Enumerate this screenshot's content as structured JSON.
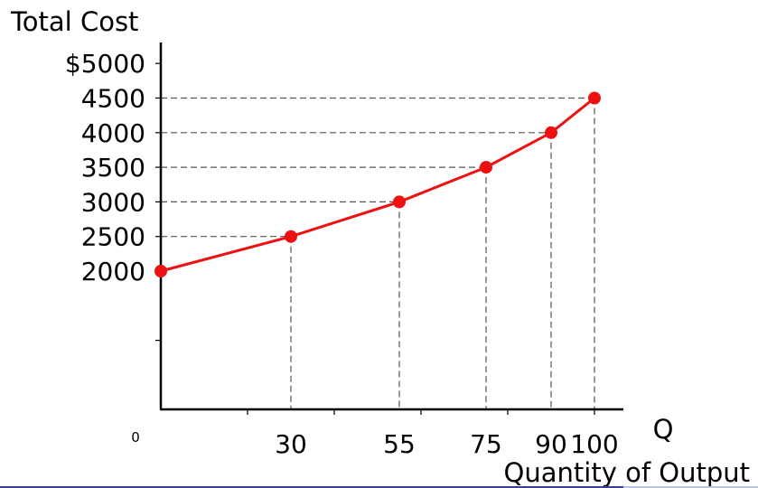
{
  "chart_data": {
    "type": "line",
    "ylabel": "Total Cost",
    "xlabel": "Quantity of Output",
    "x_axis_symbol": "Q",
    "origin_label": "0",
    "y_ticks": [
      "$5000",
      "4500",
      "4000",
      "3500",
      "3000",
      "2500",
      "2000"
    ],
    "x_ticks": [
      "30",
      "55",
      "75",
      "90",
      "100"
    ],
    "series": [
      {
        "x": [
          0,
          30,
          55,
          75,
          90,
          100
        ],
        "y": [
          2000,
          2500,
          3000,
          3500,
          4000,
          4500
        ]
      }
    ],
    "colors": {
      "line": "#ee1111",
      "marker": "#ee1111",
      "axis": "#000000",
      "guide": "#555555"
    }
  }
}
